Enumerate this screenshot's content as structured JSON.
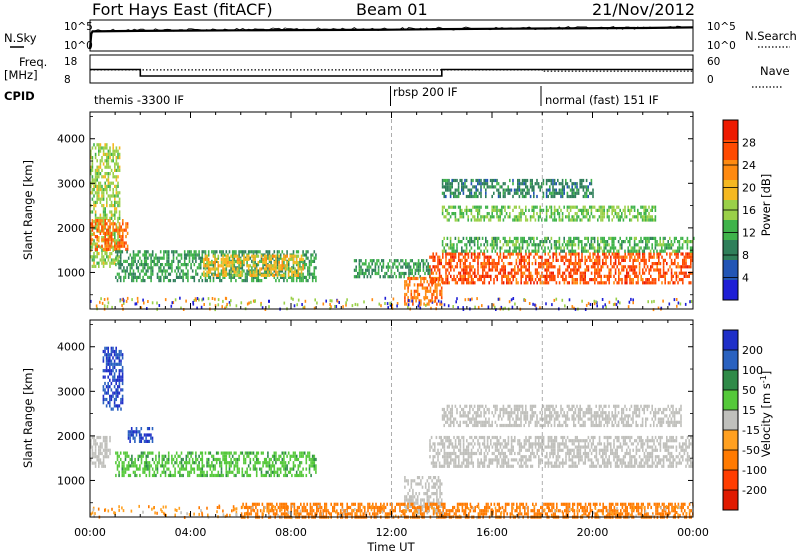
{
  "header": {
    "title": "Fort Hays East (fitACF)",
    "beam": "Beam 01",
    "date": "21/Nov/2012"
  },
  "panel_labels": {
    "nsky": "N.Sky",
    "freq_line1": "Freq.",
    "freq_line2": "[MHz]",
    "cpid": "CPID",
    "nsearch": "N.Search",
    "nave": "Nave",
    "noise_ticks": [
      "10^5",
      "10^0"
    ],
    "freq_ticks": [
      "18",
      "8"
    ],
    "nave_ticks": [
      "60",
      "0"
    ]
  },
  "cpid_segments": [
    {
      "label": "themis -3300 IF",
      "start_hour": 0
    },
    {
      "label": "rbsp 200 IF",
      "start_hour": 12
    },
    {
      "label": "normal (fast) 151 IF",
      "start_hour": 18
    }
  ],
  "x_axis": {
    "label": "Time UT",
    "ticks": [
      "00:00",
      "04:00",
      "08:00",
      "12:00",
      "16:00",
      "20:00",
      "00:00"
    ],
    "range_hours": [
      0,
      24
    ]
  },
  "colorbars": {
    "power": {
      "label": "Power [dB]",
      "ticks": [
        "4",
        "8",
        "12",
        "16",
        "20",
        "24",
        "28"
      ],
      "colors": [
        "#1f1fd6",
        "#2255b5",
        "#2f7f5a",
        "#3fb34a",
        "#9ad048",
        "#f5b820",
        "#ff8a10",
        "#ff4a00",
        "#ee1a00"
      ]
    },
    "velocity": {
      "label": "Velocity [m s-1]",
      "ticks": [
        "200",
        "100",
        "50",
        "15",
        "-15",
        "-50",
        "-100",
        "-200"
      ],
      "colors": [
        "#1f2fc8",
        "#2a62c0",
        "#2f8a48",
        "#55c93a",
        "#c0c0bc",
        "#ffa020",
        "#ff7a00",
        "#ff3d00",
        "#e01a00"
      ]
    }
  },
  "chart_data": [
    {
      "type": "line",
      "title": "N.Sky",
      "x_unit": "hours UT",
      "ylim_log10": [
        0,
        5
      ],
      "series": [
        {
          "name": "N.Sky",
          "x": [
            0,
            0.05,
            0.1,
            2,
            6,
            12,
            14,
            18,
            22,
            24
          ],
          "log10_values": [
            0.2,
            2.8,
            3.2,
            3.3,
            3.4,
            3.5,
            3.6,
            3.7,
            3.8,
            3.9
          ]
        }
      ]
    },
    {
      "type": "line",
      "title": "Freq. [MHz]",
      "ylim": [
        8,
        18
      ],
      "series": [
        {
          "name": "Freq.",
          "x": [
            0,
            2,
            2,
            14,
            14,
            24
          ],
          "values": [
            12.8,
            12.8,
            10.3,
            10.3,
            12.8,
            12.8
          ]
        },
        {
          "name": "Nave",
          "x": [
            0,
            2,
            2,
            14,
            14,
            18,
            18,
            24
          ],
          "values": [
            28,
            28,
            28,
            28,
            28,
            28,
            25,
            25
          ]
        }
      ]
    },
    {
      "type": "heatmap",
      "title": "Power [dB]",
      "xlabel": "Time UT",
      "ylabel": "Slant Range [km]",
      "xlim": [
        0,
        24
      ],
      "ylim": [
        180,
        4600
      ],
      "yticks": [
        1000,
        2000,
        3000,
        4000
      ],
      "structures": [
        {
          "t_start": 0.0,
          "t_end": 1.2,
          "range_start": 1100,
          "range_end": 3900,
          "value": 16
        },
        {
          "t_start": 0.0,
          "t_end": 1.5,
          "range_start": 1500,
          "range_end": 2200,
          "value": 26
        },
        {
          "t_start": 1.0,
          "t_end": 9.0,
          "range_start": 800,
          "range_end": 1500,
          "value": 10
        },
        {
          "t_start": 4.5,
          "t_end": 8.5,
          "range_start": 900,
          "range_end": 1400,
          "value": 20
        },
        {
          "t_start": 10.5,
          "t_end": 13.5,
          "range_start": 900,
          "range_end": 1300,
          "value": 10
        },
        {
          "t_start": 12.5,
          "t_end": 14.0,
          "range_start": 300,
          "range_end": 900,
          "value": 25
        },
        {
          "t_start": 13.5,
          "t_end": 24.0,
          "range_start": 800,
          "range_end": 1450,
          "value": 28
        },
        {
          "t_start": 14.0,
          "t_end": 24.0,
          "range_start": 1500,
          "range_end": 1800,
          "value": 12
        },
        {
          "t_start": 14.0,
          "t_end": 22.5,
          "range_start": 2200,
          "range_end": 2500,
          "value": 14
        },
        {
          "t_start": 14.0,
          "t_end": 20.0,
          "range_start": 2700,
          "range_end": 3100,
          "value": 8
        }
      ]
    },
    {
      "type": "heatmap",
      "title": "Velocity [m s-1]",
      "xlabel": "Time UT",
      "ylabel": "Slant Range [km]",
      "xlim": [
        0,
        24
      ],
      "ylim": [
        180,
        4600
      ],
      "yticks": [
        1000,
        2000,
        3000,
        4000
      ],
      "structures": [
        {
          "t_start": 0.5,
          "t_end": 1.3,
          "range_start": 2600,
          "range_end": 4000,
          "value": 150
        },
        {
          "t_start": 0.0,
          "t_end": 0.8,
          "range_start": 1300,
          "range_end": 2000,
          "value": 0
        },
        {
          "t_start": 1.5,
          "t_end": 2.5,
          "range_start": 1900,
          "range_end": 2200,
          "value": 150
        },
        {
          "t_start": 1.0,
          "t_end": 9.0,
          "range_start": 1100,
          "range_end": 1650,
          "value": 30
        },
        {
          "t_start": 13.5,
          "t_end": 24.0,
          "range_start": 1300,
          "range_end": 2000,
          "value": 0
        },
        {
          "t_start": 14.0,
          "t_end": 23.5,
          "range_start": 2200,
          "range_end": 2700,
          "value": 0
        },
        {
          "t_start": 12.5,
          "t_end": 14.0,
          "range_start": 300,
          "range_end": 1100,
          "value": -5
        },
        {
          "t_start": 6.0,
          "t_end": 24.0,
          "range_start": 180,
          "range_end": 500,
          "value": -60
        }
      ]
    }
  ]
}
